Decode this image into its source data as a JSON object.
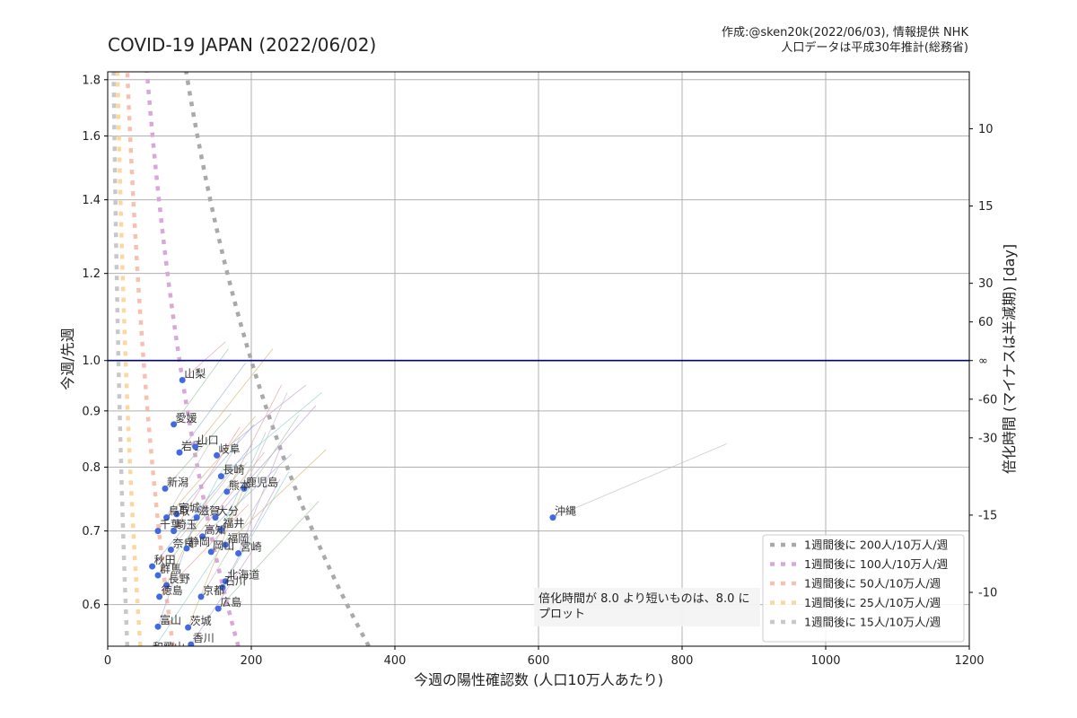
{
  "title": "COVID-19 JAPAN (2022/06/02)",
  "credit_lines": [
    "作成:@sken20k(2022/06/03), 情報提供 NHK",
    "人口データは平成30年推計(総務省)"
  ],
  "note_lines": [
    "倍化時間が 8.0 より短いものは、8.0 に",
    "プロット"
  ],
  "chart_data": {
    "type": "scatter",
    "xlabel": "今週の陽性確認数 (人口10万人あたり)",
    "ylabel": "今週/先週",
    "ylabel_right": "倍化時間 (マイナスは半減期) [day]",
    "xlim": [
      0,
      1200
    ],
    "ylim": [
      0.55,
      1.83
    ],
    "y_scale": "log",
    "grid": true,
    "legend_position": "lower-right",
    "x_ticks": [
      "0",
      "200",
      "400",
      "600",
      "800",
      "1000",
      "1200"
    ],
    "y_ticks": [
      "0.6",
      "0.7",
      "0.8",
      "0.9",
      "1.0",
      "1.2",
      "1.4",
      "1.6",
      "1.8"
    ],
    "y_tick_values": [
      0.6,
      0.7,
      0.8,
      0.9,
      1.0,
      1.2,
      1.4,
      1.6,
      1.8
    ],
    "right_ticks": [
      "10",
      "15",
      "30",
      "60",
      "∞",
      "-60",
      "-30",
      "-15",
      "-10"
    ],
    "right_tick_days": [
      10,
      15,
      30,
      60,
      null,
      -60,
      -30,
      -15,
      -10
    ],
    "reference_line": {
      "y": 1.0,
      "color": "#00008b"
    },
    "legend": [
      {
        "label": "1週間後に 200人/10万人/週",
        "target": 200,
        "color": "#a9a9a9"
      },
      {
        "label": "1週間後に 100人/10万人/週",
        "target": 100,
        "color": "#d8a8d8"
      },
      {
        "label": "1週間後に 50人/10万人/週",
        "target": 50,
        "color": "#f8c0b0"
      },
      {
        "label": "1週間後に 25人/10万人/週",
        "target": 25,
        "color": "#fbd8a0"
      },
      {
        "label": "1週間後に 15人/10万人/週",
        "target": 15,
        "color": "#c8c8c8"
      }
    ],
    "point_color": "#4169e1",
    "points": [
      {
        "name": "山梨",
        "x": 104,
        "y": 0.96
      },
      {
        "name": "愛媛",
        "x": 92,
        "y": 0.875
      },
      {
        "name": "岩手",
        "x": 100,
        "y": 0.825
      },
      {
        "name": "山口",
        "x": 122,
        "y": 0.835
      },
      {
        "name": "岐阜",
        "x": 152,
        "y": 0.82
      },
      {
        "name": "長崎",
        "x": 158,
        "y": 0.785
      },
      {
        "name": "鹿児島",
        "x": 190,
        "y": 0.765
      },
      {
        "name": "熊本",
        "x": 166,
        "y": 0.76
      },
      {
        "name": "新潟",
        "x": 80,
        "y": 0.765
      },
      {
        "name": "宮城",
        "x": 96,
        "y": 0.725
      },
      {
        "name": "鳥取",
        "x": 82,
        "y": 0.72
      },
      {
        "name": "大分",
        "x": 150,
        "y": 0.72
      },
      {
        "name": "滋賀",
        "x": 124,
        "y": 0.72
      },
      {
        "name": "千葉",
        "x": 70,
        "y": 0.7
      },
      {
        "name": "埼玉",
        "x": 92,
        "y": 0.7
      },
      {
        "name": "福井",
        "x": 158,
        "y": 0.702
      },
      {
        "name": "高知",
        "x": 132,
        "y": 0.692
      },
      {
        "name": "福岡",
        "x": 164,
        "y": 0.68
      },
      {
        "name": "宮崎",
        "x": 182,
        "y": 0.668
      },
      {
        "name": "岡山",
        "x": 144,
        "y": 0.67
      },
      {
        "name": "奈良",
        "x": 88,
        "y": 0.673
      },
      {
        "name": "静岡",
        "x": 110,
        "y": 0.675
      },
      {
        "name": "群馬",
        "x": 70,
        "y": 0.638
      },
      {
        "name": "秋田",
        "x": 62,
        "y": 0.65
      },
      {
        "name": "長野",
        "x": 82,
        "y": 0.625
      },
      {
        "name": "北海道",
        "x": 164,
        "y": 0.63
      },
      {
        "name": "石川",
        "x": 160,
        "y": 0.622
      },
      {
        "name": "京都",
        "x": 130,
        "y": 0.61
      },
      {
        "name": "徳島",
        "x": 72,
        "y": 0.61
      },
      {
        "name": "広島",
        "x": 154,
        "y": 0.595
      },
      {
        "name": "富山",
        "x": 70,
        "y": 0.573
      },
      {
        "name": "茨城",
        "x": 112,
        "y": 0.572
      },
      {
        "name": "香川",
        "x": 116,
        "y": 0.552
      },
      {
        "name": "和歌山",
        "x": 60,
        "y": 0.542
      },
      {
        "name": "沖縄",
        "x": 620,
        "y": 0.72
      }
    ]
  }
}
